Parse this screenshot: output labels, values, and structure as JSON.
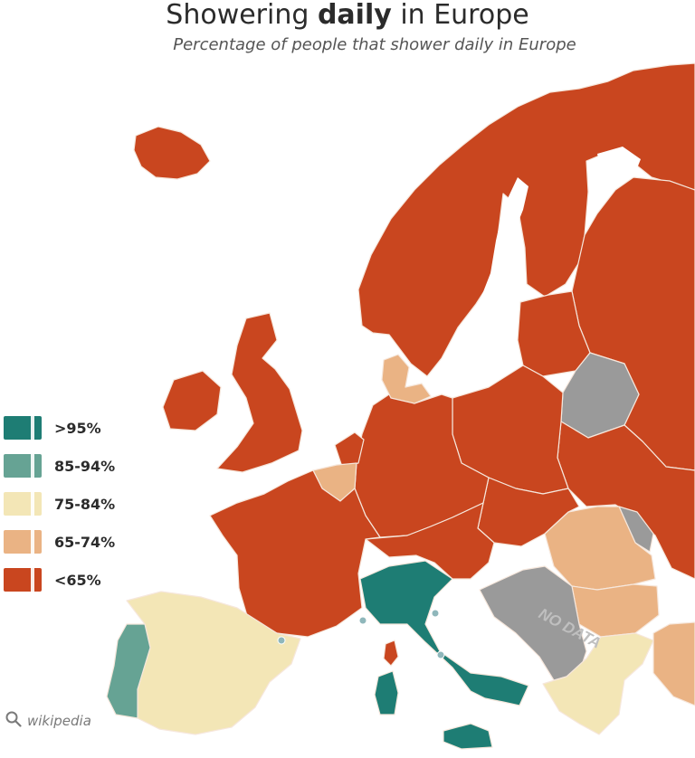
{
  "header": {
    "title_pre": "Showering ",
    "title_bold": "daily",
    "title_post": " in Europe",
    "subtitle": "Percentage of people that shower daily in Europe"
  },
  "legend": [
    {
      "label": ">95%",
      "color": "#1e7d74"
    },
    {
      "label": "85-94%",
      "color": "#66a394"
    },
    {
      "label": "75-84%",
      "color": "#f3e6b6"
    },
    {
      "label": "65-74%",
      "color": "#eab384"
    },
    {
      "label": "<65%",
      "color": "#c9461f"
    }
  ],
  "map": {
    "no_data_label": "NO DATA",
    "regions": [
      {
        "name": "Italy",
        "category": ">95%"
      },
      {
        "name": "Portugal",
        "category": "85-94%"
      },
      {
        "name": "Spain",
        "category": "75-84%"
      },
      {
        "name": "Greece",
        "category": "75-84%"
      },
      {
        "name": "Belgium",
        "category": "65-74%"
      },
      {
        "name": "Denmark",
        "category": "65-74%"
      },
      {
        "name": "Romania",
        "category": "65-74%"
      },
      {
        "name": "Bulgaria",
        "category": "65-74%"
      },
      {
        "name": "Turkey",
        "category": "65-74%"
      },
      {
        "name": "Belarus",
        "category": "no data"
      },
      {
        "name": "Moldova",
        "category": "no data"
      },
      {
        "name": "Western Balkans",
        "category": "no data"
      }
    ]
  },
  "source": {
    "icon": "search-icon",
    "text": "wikipedia"
  }
}
